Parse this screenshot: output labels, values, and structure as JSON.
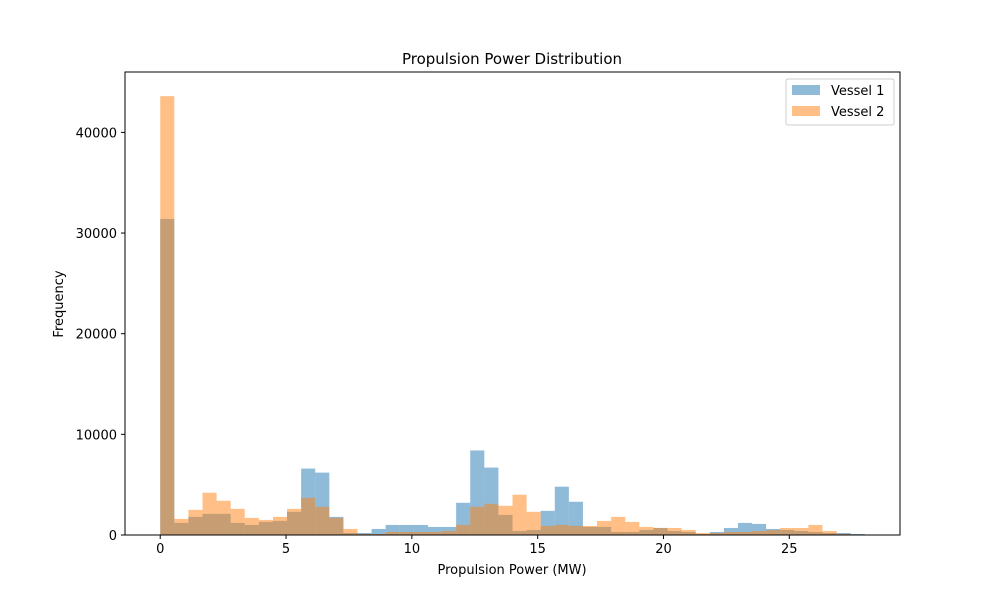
{
  "chart_data": {
    "type": "histogram",
    "title": "Propulsion Power Distribution",
    "xlabel": "Propulsion Power (MW)",
    "ylabel": "Frequency",
    "xlim": [
      -1.4,
      29.4
    ],
    "ylim": [
      0,
      46000
    ],
    "xticks": [
      0,
      5,
      10,
      15,
      20,
      25
    ],
    "yticks": [
      0,
      10000,
      20000,
      30000,
      40000
    ],
    "legend_position": "top-right",
    "grid": false,
    "series": [
      {
        "name": "Vessel 1",
        "color": "#1f77b4",
        "opacity": 0.5,
        "bin_start": 0,
        "bin_width": 0.56,
        "values": [
          31400,
          1200,
          1800,
          2100,
          2100,
          1200,
          1000,
          1300,
          1400,
          2300,
          6600,
          6200,
          1800,
          200,
          200,
          600,
          1000,
          1000,
          1000,
          800,
          800,
          3200,
          8400,
          6700,
          2000,
          400,
          500,
          2400,
          4800,
          3300,
          800,
          800,
          300,
          300,
          500,
          700,
          400,
          300,
          100,
          300,
          700,
          1200,
          1100,
          600,
          500,
          400,
          300,
          200,
          200,
          100
        ]
      },
      {
        "name": "Vessel 2",
        "color": "#ff7f0e",
        "opacity": 0.5,
        "bin_start": 0,
        "bin_width": 0.56,
        "values": [
          43600,
          1600,
          2500,
          4200,
          3400,
          2600,
          1700,
          1500,
          1800,
          2600,
          3700,
          2800,
          1700,
          600,
          100,
          100,
          300,
          300,
          300,
          300,
          400,
          1000,
          2800,
          3100,
          2900,
          4000,
          2300,
          900,
          1000,
          900,
          900,
          1400,
          1800,
          1300,
          800,
          700,
          700,
          500,
          200,
          200,
          300,
          300,
          400,
          500,
          700,
          700,
          1000,
          400,
          100,
          0
        ]
      }
    ]
  }
}
